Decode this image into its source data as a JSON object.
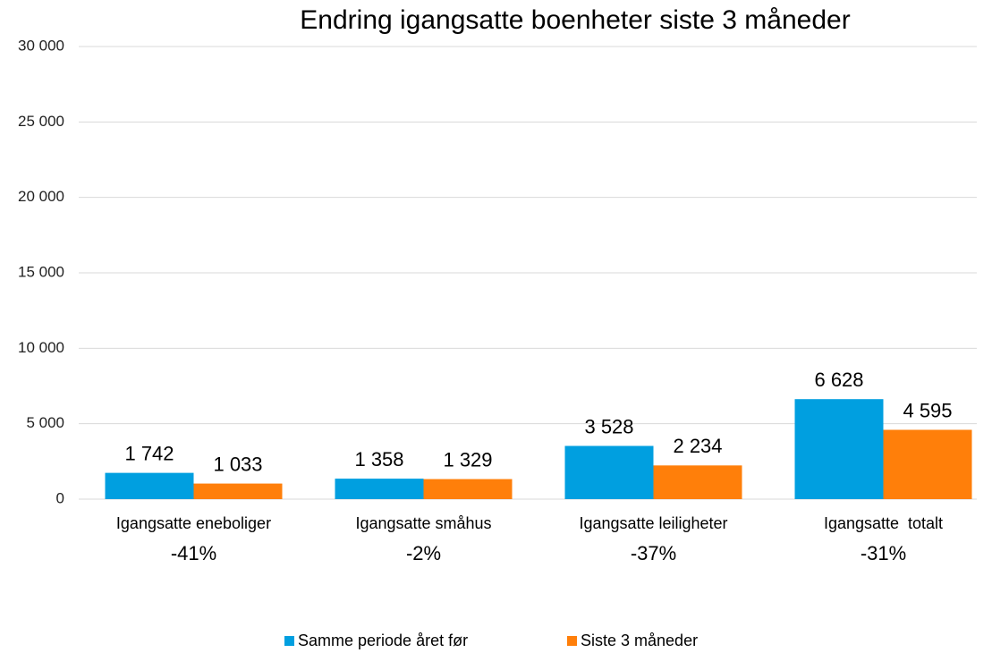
{
  "chart_data": {
    "type": "bar",
    "title": "Endring igangsatte boenheter siste 3 måneder",
    "categories": [
      "Igangsatte eneboliger",
      "Igangsatte småhus",
      "Igangsatte leiligheter",
      "Igangsatte  totalt"
    ],
    "annotations": [
      "-41%",
      "-2%",
      "-37%",
      "-31%"
    ],
    "series": [
      {
        "name": "Samme periode året før",
        "color": "#009fe0",
        "values": [
          1742,
          1358,
          3528,
          6628
        ],
        "value_labels": [
          "1 742",
          "1 358",
          "3 528",
          "6 628"
        ]
      },
      {
        "name": "Siste 3 måneder",
        "color": "#ff7f0a",
        "values": [
          1033,
          1329,
          2234,
          4595
        ],
        "value_labels": [
          "1 033",
          "1 329",
          "2 234",
          "4 595"
        ]
      }
    ],
    "ylim": [
      0,
      30000
    ],
    "yticks": [
      0,
      {
        "value": 5000,
        "label": "5 000"
      },
      {
        "value": 10000,
        "label": "10 000"
      },
      {
        "value": 15000,
        "label": "15 000"
      },
      {
        "value": 20000,
        "label": "20 000"
      },
      {
        "value": 25000,
        "label": "25 000"
      },
      {
        "value": 30000,
        "label": "30 000"
      }
    ],
    "grid": true,
    "legend": "bottom"
  }
}
